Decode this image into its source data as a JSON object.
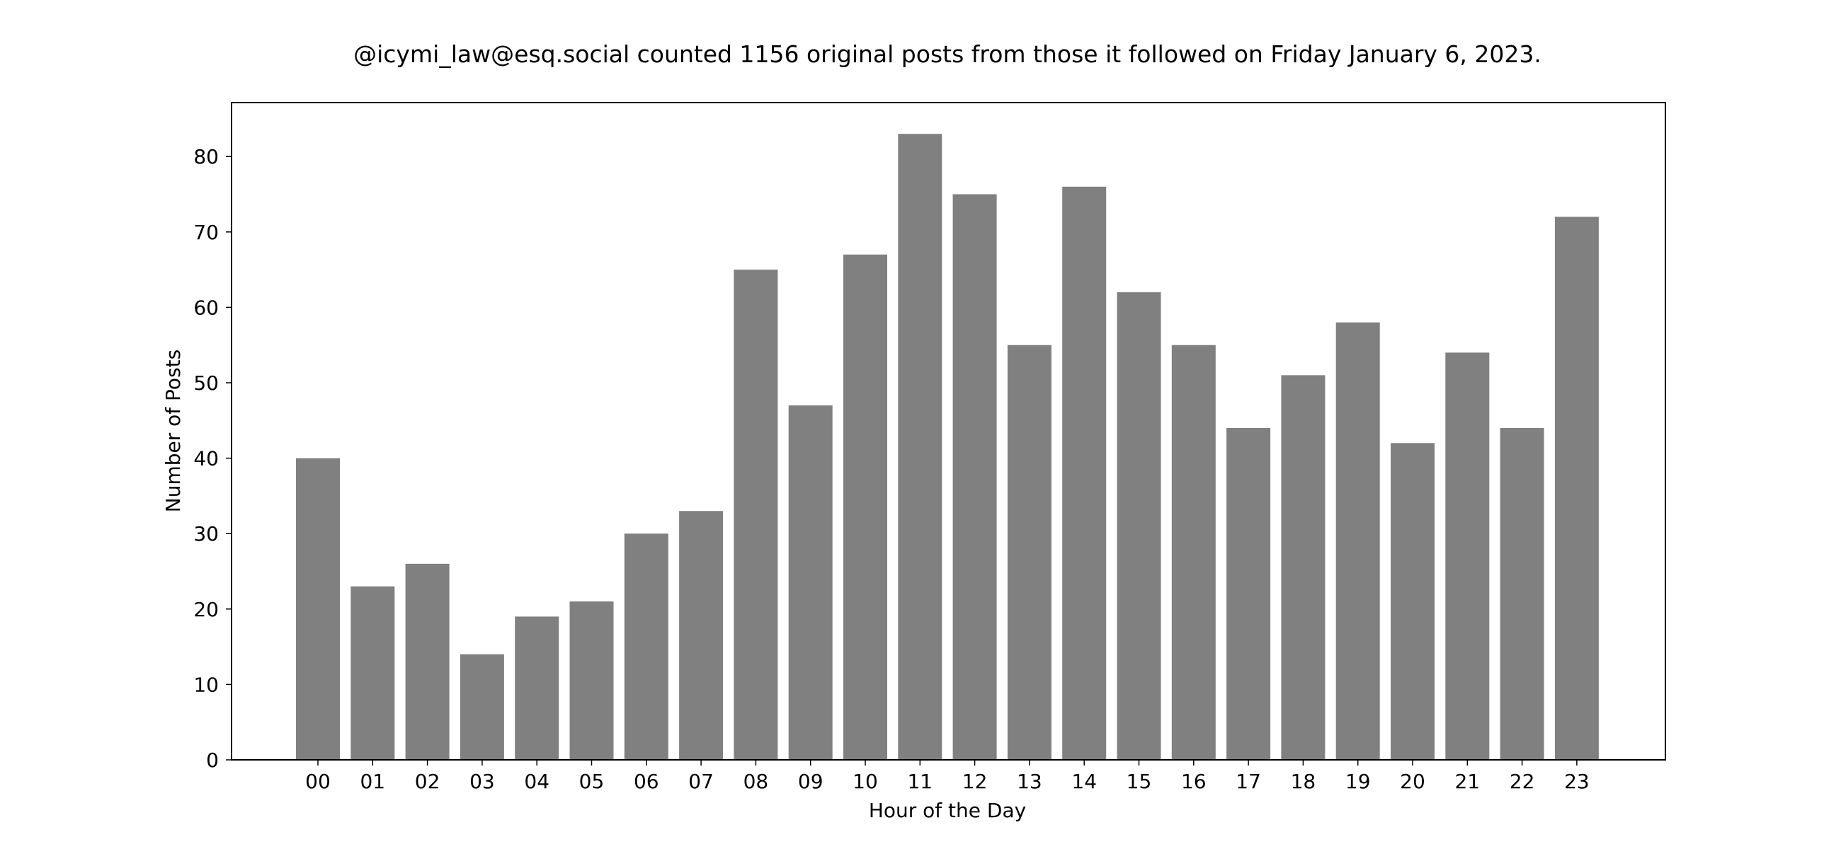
{
  "chart_data": {
    "type": "bar",
    "title": "@icymi_law@esq.social counted 1156 original posts from those it followed on Friday January 6, 2023.",
    "xlabel": "Hour of the Day",
    "ylabel": "Number of Posts",
    "categories": [
      "00",
      "01",
      "02",
      "03",
      "04",
      "05",
      "06",
      "07",
      "08",
      "09",
      "10",
      "11",
      "12",
      "13",
      "14",
      "15",
      "16",
      "17",
      "18",
      "19",
      "20",
      "21",
      "22",
      "23"
    ],
    "values": [
      40,
      23,
      26,
      14,
      19,
      21,
      30,
      33,
      65,
      47,
      67,
      83,
      75,
      55,
      76,
      62,
      55,
      44,
      51,
      58,
      42,
      54,
      44,
      72
    ],
    "ylim": [
      0,
      87.15
    ],
    "yticks": [
      "0",
      "10",
      "20",
      "30",
      "40",
      "50",
      "60",
      "70",
      "80"
    ],
    "grid": false,
    "bar_color": "#808080"
  }
}
